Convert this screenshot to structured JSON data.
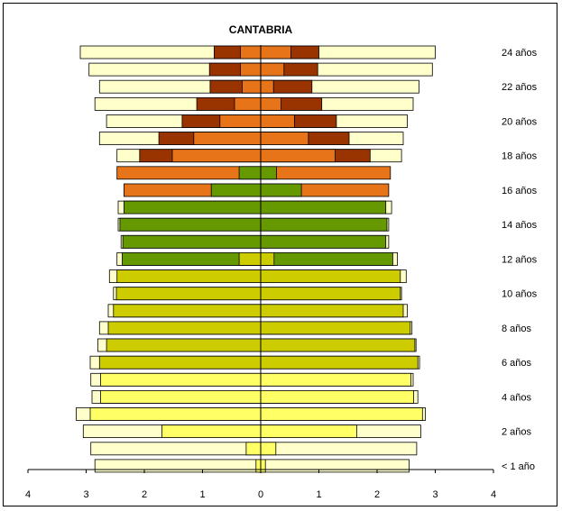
{
  "chart_data": {
    "type": "bar",
    "title": "CANTABRIA",
    "x_axis": {
      "min": -4,
      "max": 4,
      "ticks": [
        "4",
        "3",
        "2",
        "1",
        "0",
        "1",
        "2",
        "3",
        "4"
      ]
    },
    "age_labels": [
      "< 1 año",
      "2 años",
      "4 años",
      "6 años",
      "8 años",
      "10 años",
      "12 años",
      "14 años",
      "16 años",
      "18 años",
      "20 años",
      "22 años",
      "24 años"
    ],
    "colors": {
      "outer": "#FFFFCC",
      "seg_yellow": "#FFFF66",
      "seg_olive_yellow": "#CCCC00",
      "seg_green": "#669900",
      "seg_orange": "#E8741A",
      "seg_brown": "#993300"
    },
    "rows": [
      {
        "age": 0,
        "left": [
          [
            2.85,
            "outer"
          ],
          [
            0.08,
            "seg_yellow"
          ]
        ],
        "right": [
          [
            2.55,
            "outer"
          ],
          [
            0.08,
            "seg_yellow"
          ]
        ]
      },
      {
        "age": 1,
        "left": [
          [
            2.92,
            "outer"
          ],
          [
            0.25,
            "seg_yellow"
          ]
        ],
        "right": [
          [
            2.68,
            "outer"
          ],
          [
            0.26,
            "seg_yellow"
          ]
        ]
      },
      {
        "age": 2,
        "left": [
          [
            3.05,
            "outer"
          ],
          [
            1.7,
            "seg_yellow"
          ]
        ],
        "right": [
          [
            2.75,
            "outer"
          ],
          [
            1.65,
            "seg_yellow"
          ]
        ]
      },
      {
        "age": 3,
        "left": [
          [
            3.17,
            "outer"
          ],
          [
            2.93,
            "seg_yellow"
          ]
        ],
        "right": [
          [
            2.83,
            "outer"
          ],
          [
            2.78,
            "seg_yellow"
          ]
        ]
      },
      {
        "age": 4,
        "left": [
          [
            2.9,
            "outer"
          ],
          [
            2.75,
            "seg_yellow"
          ]
        ],
        "right": [
          [
            2.7,
            "outer"
          ],
          [
            2.63,
            "seg_yellow"
          ]
        ]
      },
      {
        "age": 5,
        "left": [
          [
            2.92,
            "outer"
          ],
          [
            2.75,
            "seg_yellow"
          ]
        ],
        "right": [
          [
            2.62,
            "outer"
          ],
          [
            2.58,
            "seg_yellow"
          ]
        ]
      },
      {
        "age": 6,
        "left": [
          [
            2.93,
            "outer"
          ],
          [
            2.77,
            "seg_olive_yellow"
          ]
        ],
        "right": [
          [
            2.73,
            "outer"
          ],
          [
            2.7,
            "seg_olive_yellow"
          ]
        ]
      },
      {
        "age": 7,
        "left": [
          [
            2.8,
            "outer"
          ],
          [
            2.65,
            "seg_olive_yellow"
          ]
        ],
        "right": [
          [
            2.67,
            "outer"
          ],
          [
            2.65,
            "seg_olive_yellow"
          ]
        ]
      },
      {
        "age": 8,
        "left": [
          [
            2.77,
            "outer"
          ],
          [
            2.62,
            "seg_olive_yellow"
          ]
        ],
        "right": [
          [
            2.6,
            "outer"
          ],
          [
            2.57,
            "seg_olive_yellow"
          ]
        ]
      },
      {
        "age": 9,
        "left": [
          [
            2.62,
            "outer"
          ],
          [
            2.53,
            "seg_olive_yellow"
          ]
        ],
        "right": [
          [
            2.52,
            "outer"
          ],
          [
            2.45,
            "seg_olive_yellow"
          ]
        ]
      },
      {
        "age": 10,
        "left": [
          [
            2.53,
            "outer"
          ],
          [
            2.48,
            "seg_olive_yellow"
          ]
        ],
        "right": [
          [
            2.42,
            "outer"
          ],
          [
            2.4,
            "seg_olive_yellow"
          ]
        ]
      },
      {
        "age": 11,
        "left": [
          [
            2.6,
            "outer"
          ],
          [
            2.47,
            "seg_olive_yellow"
          ]
        ],
        "right": [
          [
            2.5,
            "outer"
          ],
          [
            2.4,
            "seg_olive_yellow"
          ]
        ]
      },
      {
        "age": 12,
        "left": [
          [
            2.47,
            "outer"
          ],
          [
            2.38,
            "seg_green"
          ],
          [
            0.37,
            "seg_olive_yellow"
          ]
        ],
        "right": [
          [
            2.35,
            "outer"
          ],
          [
            2.27,
            "seg_green"
          ],
          [
            0.23,
            "seg_olive_yellow"
          ]
        ]
      },
      {
        "age": 13,
        "left": [
          [
            2.4,
            "outer"
          ],
          [
            2.37,
            "seg_green"
          ]
        ],
        "right": [
          [
            2.2,
            "outer"
          ],
          [
            2.15,
            "seg_green"
          ]
        ]
      },
      {
        "age": 14,
        "left": [
          [
            2.45,
            "outer"
          ],
          [
            2.42,
            "seg_green"
          ]
        ],
        "right": [
          [
            2.2,
            "outer"
          ],
          [
            2.17,
            "seg_green"
          ]
        ]
      },
      {
        "age": 15,
        "left": [
          [
            2.45,
            "outer"
          ],
          [
            2.35,
            "seg_green"
          ]
        ],
        "right": [
          [
            2.25,
            "outer"
          ],
          [
            2.15,
            "seg_green"
          ]
        ]
      },
      {
        "age": 16,
        "left": [
          [
            2.35,
            "seg_orange"
          ],
          [
            0.85,
            "seg_green"
          ]
        ],
        "right": [
          [
            2.2,
            "seg_orange"
          ],
          [
            0.7,
            "seg_green"
          ]
        ]
      },
      {
        "age": 17,
        "left": [
          [
            2.47,
            "seg_orange"
          ],
          [
            0.37,
            "seg_green"
          ]
        ],
        "right": [
          [
            2.23,
            "seg_orange"
          ],
          [
            0.27,
            "seg_green"
          ]
        ]
      },
      {
        "age": 18,
        "left": [
          [
            2.47,
            "outer"
          ],
          [
            2.08,
            "seg_brown"
          ],
          [
            1.52,
            "seg_orange"
          ]
        ],
        "right": [
          [
            2.42,
            "outer"
          ],
          [
            1.88,
            "seg_brown"
          ],
          [
            1.28,
            "seg_orange"
          ]
        ]
      },
      {
        "age": 19,
        "left": [
          [
            2.77,
            "outer"
          ],
          [
            1.75,
            "seg_brown"
          ],
          [
            1.15,
            "seg_orange"
          ]
        ],
        "right": [
          [
            2.45,
            "outer"
          ],
          [
            1.52,
            "seg_brown"
          ],
          [
            0.82,
            "seg_orange"
          ]
        ]
      },
      {
        "age": 20,
        "left": [
          [
            2.65,
            "outer"
          ],
          [
            1.35,
            "seg_brown"
          ],
          [
            0.7,
            "seg_orange"
          ]
        ],
        "right": [
          [
            2.52,
            "outer"
          ],
          [
            1.3,
            "seg_brown"
          ],
          [
            0.58,
            "seg_orange"
          ]
        ]
      },
      {
        "age": 21,
        "left": [
          [
            2.85,
            "outer"
          ],
          [
            1.1,
            "seg_brown"
          ],
          [
            0.45,
            "seg_orange"
          ]
        ],
        "right": [
          [
            2.62,
            "outer"
          ],
          [
            1.05,
            "seg_brown"
          ],
          [
            0.35,
            "seg_orange"
          ]
        ]
      },
      {
        "age": 22,
        "left": [
          [
            2.77,
            "outer"
          ],
          [
            0.87,
            "seg_brown"
          ],
          [
            0.32,
            "seg_orange"
          ]
        ],
        "right": [
          [
            2.72,
            "outer"
          ],
          [
            0.88,
            "seg_brown"
          ],
          [
            0.22,
            "seg_orange"
          ]
        ]
      },
      {
        "age": 23,
        "left": [
          [
            2.95,
            "outer"
          ],
          [
            0.88,
            "seg_brown"
          ],
          [
            0.35,
            "seg_orange"
          ]
        ],
        "right": [
          [
            2.95,
            "outer"
          ],
          [
            0.98,
            "seg_brown"
          ],
          [
            0.4,
            "seg_orange"
          ]
        ]
      },
      {
        "age": 24,
        "left": [
          [
            3.1,
            "outer"
          ],
          [
            0.8,
            "seg_brown"
          ],
          [
            0.35,
            "seg_orange"
          ]
        ],
        "right": [
          [
            3.0,
            "outer"
          ],
          [
            1.0,
            "seg_brown"
          ],
          [
            0.52,
            "seg_orange"
          ]
        ]
      }
    ]
  }
}
